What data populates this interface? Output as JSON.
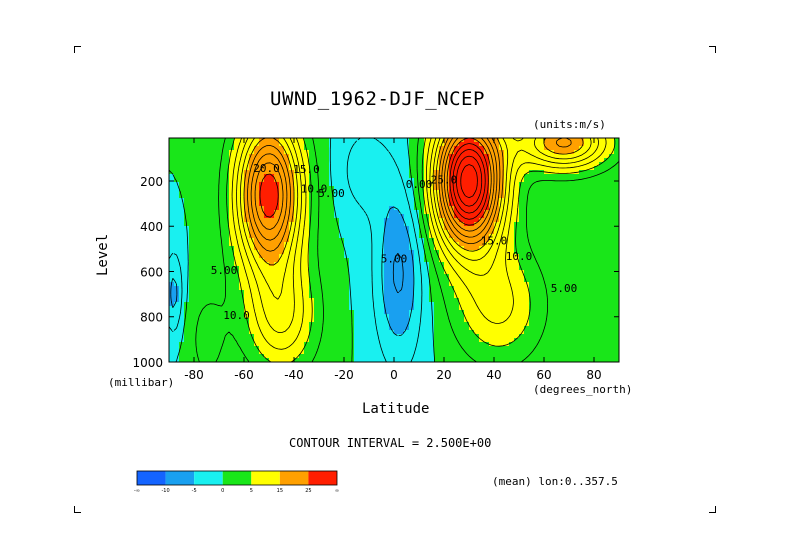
{
  "chart_data": {
    "type": "contour",
    "title": "UWND_1962-DJF_NCEP",
    "units_label": "(units:m/s)",
    "xlabel": "Latitude",
    "ylabel": "Level",
    "x_unit_label": "(degrees_north)",
    "y_unit_label": "(millibar)",
    "xlim": [
      -90,
      90
    ],
    "ylim": [
      1000,
      10
    ],
    "y_inverted": true,
    "x_ticks": [
      -80,
      -60,
      -40,
      -20,
      0,
      20,
      40,
      60,
      80
    ],
    "y_ticks": [
      200,
      400,
      600,
      800,
      1000
    ],
    "contour_interval_label": "CONTOUR INTERVAL = 2.500E+00",
    "region_label": "(mean) lon:0..357.5",
    "contour_labels": [
      {
        "text": "20.0",
        "lat": -51,
        "lev": 160
      },
      {
        "text": "15.0",
        "lat": -35,
        "lev": 165
      },
      {
        "text": "10.0",
        "lat": -32,
        "lev": 250
      },
      {
        "text": "5.00",
        "lat": -25,
        "lev": 270
      },
      {
        "text": "5.00",
        "lat": -68,
        "lev": 610
      },
      {
        "text": "10.0",
        "lat": -63,
        "lev": 810
      },
      {
        "text": "0.00",
        "lat": 10,
        "lev": 230
      },
      {
        "text": "5.00",
        "lat": 0,
        "lev": 560
      },
      {
        "text": "25.0",
        "lat": 20,
        "lev": 210
      },
      {
        "text": "15.0",
        "lat": 40,
        "lev": 480
      },
      {
        "text": "10.0",
        "lat": 50,
        "lev": 550
      },
      {
        "text": "5.00",
        "lat": 68,
        "lev": 690
      }
    ],
    "colorbar": {
      "levels": [
        "-∞",
        "-10",
        "-5",
        "0",
        "5",
        "15",
        "25",
        "∞"
      ],
      "colors": [
        "#1464ff",
        "#19a0f0",
        "#19f0f0",
        "#19e619",
        "#ffff00",
        "#ffa000",
        "#ff1e00"
      ]
    },
    "jets": [
      {
        "name": "",
        "lat": -50,
        "lev": 260,
        "max": 27
      },
      {
        "name": "",
        "lat": 30,
        "lev": 200,
        "max": 37
      }
    ]
  }
}
